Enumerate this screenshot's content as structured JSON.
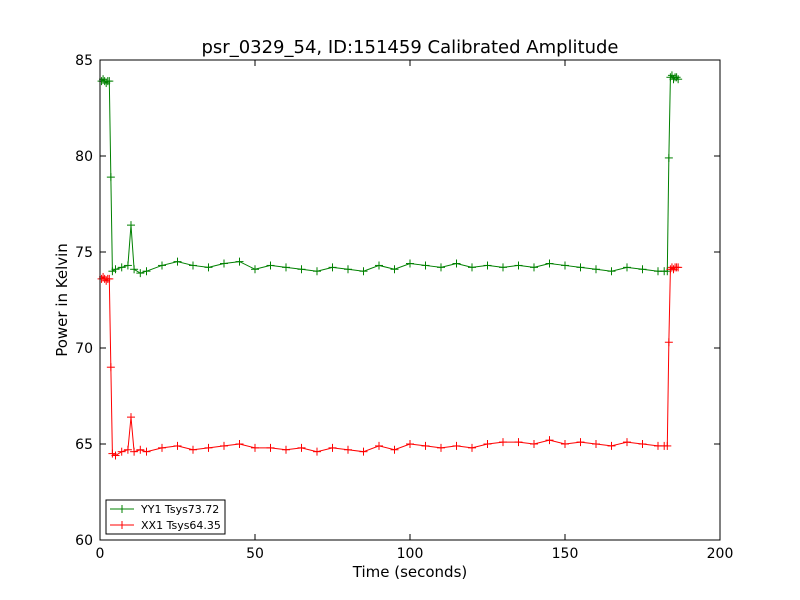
{
  "chart_data": {
    "type": "line",
    "title": "psr_0329_54, ID:151459 Calibrated Amplitude",
    "xlabel": "Time (seconds)",
    "ylabel": "Power in Kelvin",
    "xlim": [
      0,
      200
    ],
    "ylim": [
      60,
      85
    ],
    "xticks": [
      "0",
      "50",
      "100",
      "150",
      "200"
    ],
    "yticks": [
      "60",
      "65",
      "70",
      "75",
      "80",
      "85"
    ],
    "grid": false,
    "legend_position": "lower-left",
    "series": [
      {
        "name": "YY1 Tsys73.72",
        "color": "#008000",
        "marker": "+",
        "x": [
          0.5,
          1,
          1.5,
          2,
          2.5,
          3,
          3.5,
          4,
          5,
          7,
          9,
          10,
          11,
          13,
          15,
          20,
          25,
          30,
          35,
          40,
          45,
          50,
          55,
          60,
          65,
          70,
          75,
          80,
          85,
          90,
          95,
          100,
          105,
          110,
          115,
          120,
          125,
          130,
          135,
          140,
          145,
          150,
          155,
          160,
          165,
          170,
          175,
          180,
          182,
          183,
          183.5,
          184,
          184.5,
          185,
          185.5,
          186,
          186.5
        ],
        "y": [
          83.9,
          84.0,
          83.9,
          83.8,
          83.9,
          83.9,
          78.9,
          74.0,
          74.1,
          74.2,
          74.3,
          76.4,
          74.1,
          73.9,
          74.0,
          74.3,
          74.5,
          74.3,
          74.2,
          74.4,
          74.5,
          74.1,
          74.3,
          74.2,
          74.1,
          74.0,
          74.2,
          74.1,
          74.0,
          74.3,
          74.1,
          74.4,
          74.3,
          74.2,
          74.4,
          74.2,
          74.3,
          74.2,
          74.3,
          74.2,
          74.4,
          74.3,
          74.2,
          74.1,
          74.0,
          74.2,
          74.1,
          74.0,
          74.0,
          74.0,
          79.9,
          84.1,
          84.2,
          84.0,
          84.1,
          84.1,
          84.0
        ]
      },
      {
        "name": "XX1 Tsys64.35",
        "color": "#ff0000",
        "marker": "+",
        "x": [
          0.5,
          1,
          1.5,
          2,
          2.5,
          3,
          3.5,
          4,
          5,
          7,
          9,
          10,
          11,
          13,
          15,
          20,
          25,
          30,
          35,
          40,
          45,
          50,
          55,
          60,
          65,
          70,
          75,
          80,
          85,
          90,
          95,
          100,
          105,
          110,
          115,
          120,
          125,
          130,
          135,
          140,
          145,
          150,
          155,
          160,
          165,
          170,
          175,
          180,
          182,
          183,
          183.5,
          184,
          184.5,
          185,
          185.5,
          186,
          186.5
        ],
        "y": [
          73.6,
          73.7,
          73.6,
          73.5,
          73.6,
          73.6,
          69.0,
          64.5,
          64.4,
          64.6,
          64.7,
          66.4,
          64.6,
          64.7,
          64.6,
          64.8,
          64.9,
          64.7,
          64.8,
          64.9,
          65.0,
          64.8,
          64.8,
          64.7,
          64.8,
          64.6,
          64.8,
          64.7,
          64.6,
          64.9,
          64.7,
          65.0,
          64.9,
          64.8,
          64.9,
          64.8,
          65.0,
          65.1,
          65.1,
          65.0,
          65.2,
          65.0,
          65.1,
          65.0,
          64.9,
          65.1,
          65.0,
          64.9,
          64.9,
          64.9,
          70.3,
          74.1,
          74.2,
          74.1,
          74.2,
          74.2,
          74.2
        ]
      }
    ]
  }
}
